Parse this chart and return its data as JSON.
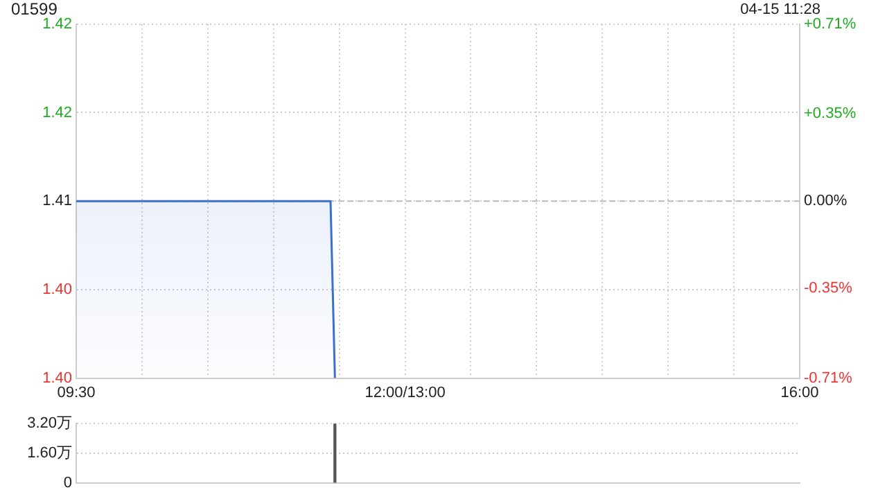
{
  "chart_data": [
    {
      "type": "area",
      "title": "01599",
      "annotations": [
        "04-15 11:28"
      ],
      "categories": [
        "09:30",
        null,
        null,
        null,
        null,
        null,
        null,
        null,
        null,
        null,
        null,
        null,
        null,
        null,
        null,
        null,
        null,
        null,
        null,
        null,
        null,
        null,
        null,
        null,
        null,
        null,
        null,
        null,
        null,
        null,
        null,
        null,
        null,
        null,
        null,
        null,
        null,
        null,
        null,
        null,
        null,
        null,
        null,
        null,
        null,
        null,
        null,
        null,
        null,
        null,
        null,
        null,
        null,
        null,
        null,
        null,
        null,
        null,
        null,
        null,
        null,
        null,
        null,
        null,
        null,
        null,
        null,
        null,
        null,
        null,
        null,
        null,
        null,
        null,
        null,
        "12:00/13:00",
        null,
        null,
        null,
        null,
        null,
        null,
        null,
        null,
        null,
        null,
        null,
        null,
        null,
        null,
        null,
        null,
        null,
        null,
        null,
        null,
        null,
        null,
        null,
        null,
        null,
        null,
        null,
        null,
        null,
        null,
        null,
        null,
        null,
        null,
        null,
        null,
        null,
        null,
        null,
        null,
        null,
        null,
        null,
        null,
        null,
        null,
        null,
        null,
        null,
        null,
        null,
        null,
        null,
        null,
        null,
        null,
        null,
        null,
        null,
        null,
        null,
        null,
        null,
        null,
        null,
        null,
        null,
        null,
        null,
        null,
        null,
        null,
        null,
        null,
        null,
        null,
        null,
        null,
        null,
        null,
        null,
        null,
        null,
        null,
        null,
        null,
        null,
        null,
        null,
        "16:00"
      ],
      "series": [
        {
          "color": "#3b6fd0",
          "values": [
            1.41,
            1.41,
            1.41,
            1.41,
            1.41,
            1.41,
            1.41,
            1.41,
            1.41,
            1.41,
            1.41,
            1.41,
            1.41,
            1.41,
            1.41,
            1.41,
            1.41,
            1.41,
            1.41,
            1.41,
            1.41,
            1.41,
            1.41,
            1.41,
            1.41,
            1.41,
            1.41,
            1.41,
            1.41,
            1.41,
            1.41,
            1.41,
            1.41,
            1.41,
            1.41,
            1.41,
            1.41,
            1.41,
            1.41,
            1.41,
            1.41,
            1.41,
            1.41,
            1.41,
            1.41,
            1.41,
            1.41,
            1.41,
            1.41,
            1.41,
            1.41,
            1.41,
            1.41,
            1.41,
            1.41,
            1.41,
            1.41,
            1.41,
            1.41,
            1.4,
            null,
            null,
            null,
            null,
            null,
            null,
            null,
            null,
            null,
            null,
            null,
            null,
            null,
            null,
            null,
            null,
            null,
            null,
            null,
            null,
            null,
            null,
            null,
            null,
            null,
            null,
            null,
            null,
            null,
            null,
            null,
            null,
            null,
            null,
            null,
            null,
            null,
            null,
            null,
            null,
            null,
            null,
            null,
            null,
            null,
            null,
            null,
            null,
            null,
            null,
            null,
            null,
            null,
            null,
            null,
            null,
            null,
            null,
            null,
            null,
            null,
            null,
            null,
            null,
            null,
            null,
            null,
            null,
            null,
            null,
            null,
            null,
            null,
            null,
            null,
            null,
            null,
            null,
            null,
            null,
            null,
            null,
            null,
            null,
            null,
            null,
            null,
            null,
            null,
            null,
            null,
            null,
            null,
            null,
            null,
            null,
            null,
            null,
            null,
            null,
            null,
            null,
            null,
            null,
            null,
            null
          ]
        }
      ],
      "ylim": [
        1.4,
        1.42
      ],
      "yticks": [
        {
          "value": 1.4,
          "label": "1.40"
        },
        {
          "value": 1.405,
          "label": "1.40"
        },
        1.41,
        {
          "value": 1.415,
          "label": "1.42"
        },
        {
          "value": 1.42,
          "label": "1.42"
        }
      ],
      "y2lim": [
        -0.71,
        0.71
      ],
      "y2ticks": [
        {
          "value": -0.71,
          "label": "-0.71%"
        },
        {
          "value": -0.35,
          "label": "-0.35%"
        },
        {
          "value": 0,
          "label": "0.00%"
        },
        {
          "value": 0.35,
          "label": "+0.35%"
        },
        {
          "value": 0.71,
          "label": "+0.71%"
        }
      ],
      "ref_lines": [
        {
          "axis": "y",
          "value": 1.41,
          "color": "#bbbbbb",
          "line_style": "dashed"
        }
      ],
      "grid": true,
      "legend": false
    },
    {
      "type": "bar",
      "color": "#555555",
      "categories": [
        null,
        null,
        null,
        null,
        null,
        null,
        null,
        null,
        null,
        null,
        null,
        null,
        null,
        null,
        null,
        null,
        null,
        null,
        null,
        null,
        null,
        null,
        null,
        null,
        null,
        null,
        null,
        null,
        null,
        null,
        null,
        null,
        null,
        null,
        null,
        null,
        null,
        null,
        null,
        null,
        null,
        null,
        null,
        null,
        null,
        null,
        null,
        null,
        null,
        null,
        null,
        null,
        null,
        null,
        null,
        null,
        null,
        null,
        null,
        null,
        null,
        null,
        null,
        null,
        null,
        null,
        null,
        null,
        null,
        null,
        null,
        null,
        null,
        null,
        null,
        null,
        null,
        null,
        null,
        null,
        null,
        null,
        null,
        null,
        null,
        null,
        null,
        null,
        null,
        null,
        null,
        null,
        null,
        null,
        null,
        null,
        null,
        null,
        null,
        null,
        null,
        null,
        null,
        null,
        null,
        null,
        null,
        null,
        null,
        null,
        null,
        null,
        null,
        null,
        null,
        null,
        null,
        null,
        null,
        null,
        null,
        null,
        null,
        null,
        null,
        null,
        null,
        null,
        null,
        null,
        null,
        null,
        null,
        null,
        null,
        null,
        null,
        null,
        null,
        null,
        null,
        null,
        null,
        null,
        null,
        null,
        null,
        null,
        null,
        null,
        null,
        null,
        null,
        null,
        null,
        null,
        null,
        null,
        null,
        null,
        null,
        null,
        null,
        null,
        null,
        null
      ],
      "values": [
        null,
        null,
        null,
        null,
        null,
        null,
        null,
        null,
        null,
        null,
        null,
        null,
        null,
        null,
        null,
        null,
        null,
        null,
        null,
        null,
        null,
        null,
        null,
        null,
        null,
        null,
        null,
        null,
        null,
        null,
        null,
        null,
        null,
        null,
        null,
        null,
        null,
        null,
        null,
        null,
        null,
        null,
        null,
        null,
        null,
        null,
        null,
        null,
        null,
        null,
        null,
        null,
        null,
        null,
        null,
        null,
        null,
        null,
        null,
        3.2,
        null,
        null,
        null,
        null,
        null,
        null,
        null,
        null,
        null,
        null,
        null,
        null,
        null,
        null,
        null,
        null,
        null,
        null,
        null,
        null,
        null,
        null,
        null,
        null,
        null,
        null,
        null,
        null,
        null,
        null,
        null,
        null,
        null,
        null,
        null,
        null,
        null,
        null,
        null,
        null,
        null,
        null,
        null,
        null,
        null,
        null,
        null,
        null,
        null,
        null,
        null,
        null,
        null,
        null,
        null,
        null,
        null,
        null,
        null,
        null,
        null,
        null,
        null,
        null,
        null,
        null,
        null,
        null,
        null,
        null,
        null,
        null,
        null,
        null,
        null,
        null,
        null,
        null,
        null,
        null,
        null,
        null,
        null,
        null,
        null,
        null,
        null,
        null,
        null,
        null,
        null,
        null,
        null,
        null,
        null,
        null,
        null,
        null,
        null,
        null,
        null,
        null,
        null,
        null,
        null,
        null
      ],
      "ylim": [
        0,
        3.2
      ],
      "yticks": [
        0,
        {
          "value": 1.6,
          "label": "1.60万"
        },
        {
          "value": 3.2,
          "label": "3.20万"
        }
      ],
      "tick_labels": "y",
      "grid": "y",
      "legend": false
    }
  ]
}
